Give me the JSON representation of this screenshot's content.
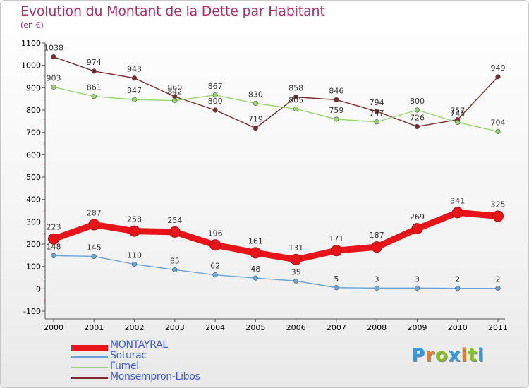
{
  "header": {
    "title": "Evolution du Montant de la Dette par Habitant",
    "unit": "(en €)"
  },
  "logo": {
    "letters": [
      "P",
      "r",
      "o",
      "x",
      "i",
      "t",
      "i"
    ],
    "colors": [
      "#2e9be0",
      "#e87d1e",
      "#8cbf26",
      "#2e9be0",
      "#e87d1e",
      "#8cbf26",
      "#2e9be0"
    ]
  },
  "chart_data": {
    "type": "line",
    "categories": [
      "2000",
      "2001",
      "2002",
      "2003",
      "2004",
      "2005",
      "2006",
      "2007",
      "2008",
      "2009",
      "2010",
      "2011"
    ],
    "ylim": [
      -100,
      1100
    ],
    "yticks": [
      -100,
      0,
      100,
      200,
      300,
      400,
      500,
      600,
      700,
      800,
      900,
      1000,
      1100
    ],
    "grid": false,
    "legend_position": "bottom-left",
    "series": [
      {
        "name": "MONTAYRAL",
        "color": "#e8141a",
        "values": [
          223,
          287,
          258,
          254,
          196,
          161,
          131,
          171,
          187,
          269,
          341,
          325
        ]
      },
      {
        "name": "Soturac",
        "color": "#6aa3d5",
        "values": [
          148,
          145,
          110,
          85,
          62,
          48,
          35,
          5,
          3,
          3,
          2,
          2
        ]
      },
      {
        "name": "Fumel",
        "color": "#96d66e",
        "values": [
          903,
          861,
          847,
          842,
          867,
          830,
          805,
          759,
          747,
          800,
          745,
          704
        ]
      },
      {
        "name": "Monsempron-Libos",
        "color": "#7a2a2a",
        "values": [
          1038,
          974,
          943,
          860,
          800,
          719,
          858,
          846,
          794,
          726,
          757,
          949
        ]
      }
    ]
  }
}
